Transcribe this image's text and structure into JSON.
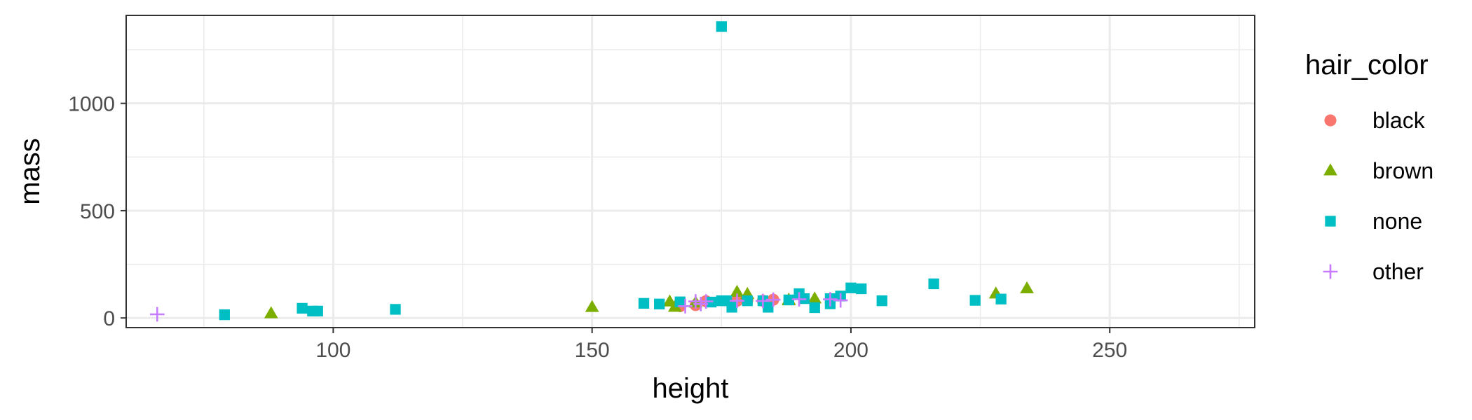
{
  "chart_data": {
    "type": "scatter",
    "xlabel": "height",
    "ylabel": "mass",
    "xlim": [
      60,
      278
    ],
    "ylim": [
      -45,
      1410
    ],
    "xticks": [
      100,
      150,
      200,
      250
    ],
    "yticks": [
      0,
      500,
      1000
    ],
    "x_minor_ticks": [
      75,
      125,
      175,
      225,
      275
    ],
    "y_minor_ticks": [
      250,
      750,
      1250
    ],
    "grid": true,
    "legend": {
      "title": "hair_color",
      "position": "right"
    },
    "series": [
      {
        "name": "black",
        "shape": "circle",
        "color": "#F8766D",
        "points": [
          [
            167,
            55
          ],
          [
            170,
            60
          ],
          [
            172,
            78
          ],
          [
            178,
            80
          ],
          [
            180,
            84
          ],
          [
            183,
            80
          ],
          [
            185,
            85
          ]
        ]
      },
      {
        "name": "brown",
        "shape": "triangle",
        "color": "#7CAE00",
        "points": [
          [
            88,
            20
          ],
          [
            150,
            49
          ],
          [
            165,
            75
          ],
          [
            166,
            50
          ],
          [
            170,
            70
          ],
          [
            178,
            120
          ],
          [
            180,
            110
          ],
          [
            188,
            84
          ],
          [
            188,
            80
          ],
          [
            193,
            89
          ],
          [
            228,
            112
          ],
          [
            234,
            136
          ]
        ]
      },
      {
        "name": "none",
        "shape": "square",
        "color": "#00BFC4",
        "points": [
          [
            175,
            1358
          ],
          [
            79,
            15
          ],
          [
            94,
            45
          ],
          [
            96,
            32
          ],
          [
            97,
            32
          ],
          [
            112,
            40
          ],
          [
            160,
            68
          ],
          [
            163,
            65
          ],
          [
            167,
            75
          ],
          [
            173,
            74
          ],
          [
            175,
            80
          ],
          [
            176,
            80
          ],
          [
            177,
            50
          ],
          [
            180,
            80
          ],
          [
            183,
            80
          ],
          [
            184,
            50
          ],
          [
            188,
            84
          ],
          [
            190,
            113
          ],
          [
            191,
            90
          ],
          [
            193,
            48
          ],
          [
            196,
            66
          ],
          [
            196,
            90
          ],
          [
            198,
            102
          ],
          [
            200,
            140
          ],
          [
            202,
            136
          ],
          [
            206,
            80
          ],
          [
            216,
            159
          ],
          [
            224,
            82
          ],
          [
            229,
            88
          ]
        ]
      },
      {
        "name": "other",
        "shape": "cross",
        "color": "#C77CFF",
        "points": [
          [
            66,
            17
          ],
          [
            168,
            55
          ],
          [
            170,
            77
          ],
          [
            171,
            65
          ],
          [
            172,
            77
          ],
          [
            178,
            80
          ],
          [
            183,
            79
          ],
          [
            185,
            85
          ],
          [
            190,
            87
          ],
          [
            196,
            87
          ],
          [
            198,
            82
          ]
        ]
      }
    ]
  }
}
